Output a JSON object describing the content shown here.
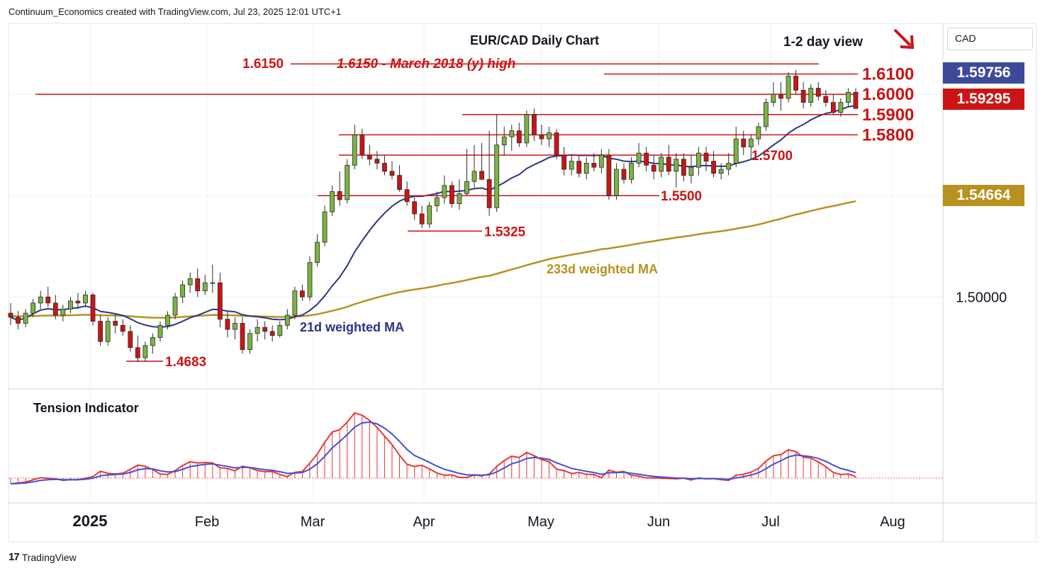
{
  "header": {
    "credit": "Continuum_Economics created with TradingView.com, Jul 23, 2025 12:01 UTC+1"
  },
  "footer": {
    "brand": "TradingView",
    "logo_text": "17"
  },
  "axis": {
    "currency": "CAD",
    "price_tags": [
      {
        "value": "1.59756",
        "color": "#3c4a9a"
      },
      {
        "value": "1.59295",
        "color": "#cc1414"
      },
      {
        "value": "1.54664",
        "color": "#b8911e"
      }
    ],
    "ticks": [
      "1.50000"
    ],
    "time_ticks": [
      "2025",
      "Feb",
      "Mar",
      "Apr",
      "May",
      "Jun",
      "Jul",
      "Aug"
    ]
  },
  "chart_data": {
    "type": "candlestick",
    "title": "EUR/CAD Daily Chart",
    "view_label": "1-2 day view",
    "view_arrow": "down-right-arrow",
    "ylim": [
      1.455,
      1.635
    ],
    "levels": [
      {
        "value": 1.615,
        "label": "1.6150",
        "color": "#cc1414"
      },
      {
        "value": 1.61,
        "label": "1.6100",
        "color": "#cc1414"
      },
      {
        "value": 1.6,
        "label": "1.6000",
        "color": "#cc1414"
      },
      {
        "value": 1.59,
        "label": "1.5900",
        "color": "#cc1414"
      },
      {
        "value": 1.58,
        "label": "1.5800",
        "color": "#cc1414"
      },
      {
        "value": 1.57,
        "label": "1.5700",
        "color": "#cc1414"
      },
      {
        "value": 1.55,
        "label": "1.5500",
        "color": "#cc1414"
      },
      {
        "value": 1.5325,
        "label": "1.5325",
        "color": "#cc1414"
      },
      {
        "value": 1.4683,
        "label": "1.4683",
        "color": "#cc1414"
      }
    ],
    "annotation": "1.6150 - March 2018 (y) high",
    "series": [
      {
        "name": "21d weighted MA",
        "color": "#2a3580"
      },
      {
        "name": "233d weighted MA",
        "color": "#b8911e"
      }
    ],
    "candle_colors": {
      "up": "#7cb342",
      "down": "#cc1414"
    },
    "candles": [
      [
        1.492,
        1.497,
        1.486,
        1.49
      ],
      [
        1.49,
        1.493,
        1.484,
        1.487
      ],
      [
        1.487,
        1.494,
        1.485,
        1.492
      ],
      [
        1.492,
        1.499,
        1.49,
        1.497
      ],
      [
        1.497,
        1.503,
        1.494,
        1.5
      ],
      [
        1.5,
        1.505,
        1.495,
        1.497
      ],
      [
        1.497,
        1.501,
        1.489,
        1.491
      ],
      [
        1.491,
        1.496,
        1.488,
        1.494
      ],
      [
        1.494,
        1.5,
        1.492,
        1.498
      ],
      [
        1.498,
        1.502,
        1.494,
        1.497
      ],
      [
        1.497,
        1.503,
        1.495,
        1.501
      ],
      [
        1.501,
        1.502,
        1.486,
        1.488
      ],
      [
        1.488,
        1.491,
        1.476,
        1.478
      ],
      [
        1.478,
        1.49,
        1.476,
        1.488
      ],
      [
        1.488,
        1.491,
        1.482,
        1.486
      ],
      [
        1.486,
        1.489,
        1.481,
        1.483
      ],
      [
        1.483,
        1.486,
        1.473,
        1.475
      ],
      [
        1.475,
        1.481,
        1.468,
        1.47
      ],
      [
        1.47,
        1.478,
        1.468,
        1.476
      ],
      [
        1.476,
        1.482,
        1.472,
        1.48
      ],
      [
        1.48,
        1.488,
        1.478,
        1.486
      ],
      [
        1.486,
        1.493,
        1.484,
        1.491
      ],
      [
        1.491,
        1.502,
        1.489,
        1.5
      ],
      [
        1.5,
        1.508,
        1.497,
        1.506
      ],
      [
        1.506,
        1.512,
        1.502,
        1.509
      ],
      [
        1.509,
        1.514,
        1.5,
        1.503
      ],
      [
        1.503,
        1.511,
        1.501,
        1.507
      ],
      [
        1.507,
        1.516,
        1.502,
        1.507
      ],
      [
        1.507,
        1.512,
        1.485,
        1.489
      ],
      [
        1.489,
        1.493,
        1.48,
        1.484
      ],
      [
        1.484,
        1.49,
        1.479,
        1.487
      ],
      [
        1.487,
        1.49,
        1.472,
        1.474
      ],
      [
        1.474,
        1.484,
        1.472,
        1.482
      ],
      [
        1.482,
        1.489,
        1.478,
        1.485
      ],
      [
        1.485,
        1.488,
        1.479,
        1.483
      ],
      [
        1.483,
        1.486,
        1.478,
        1.481
      ],
      [
        1.481,
        1.488,
        1.48,
        1.486
      ],
      [
        1.486,
        1.494,
        1.484,
        1.491
      ],
      [
        1.491,
        1.505,
        1.489,
        1.503
      ],
      [
        1.503,
        1.506,
        1.498,
        1.5
      ],
      [
        1.5,
        1.52,
        1.498,
        1.517
      ],
      [
        1.517,
        1.531,
        1.515,
        1.527
      ],
      [
        1.527,
        1.545,
        1.525,
        1.542
      ],
      [
        1.542,
        1.555,
        1.54,
        1.552
      ],
      [
        1.552,
        1.562,
        1.545,
        1.548
      ],
      [
        1.548,
        1.568,
        1.546,
        1.565
      ],
      [
        1.565,
        1.585,
        1.563,
        1.58
      ],
      [
        1.58,
        1.583,
        1.568,
        1.57
      ],
      [
        1.57,
        1.575,
        1.565,
        1.568
      ],
      [
        1.568,
        1.572,
        1.563,
        1.566
      ],
      [
        1.566,
        1.57,
        1.56,
        1.562
      ],
      [
        1.562,
        1.567,
        1.558,
        1.56
      ],
      [
        1.56,
        1.565,
        1.552,
        1.553
      ],
      [
        1.553,
        1.557,
        1.545,
        1.547
      ],
      [
        1.547,
        1.549,
        1.538,
        1.541
      ],
      [
        1.541,
        1.545,
        1.534,
        1.536
      ],
      [
        1.536,
        1.547,
        1.534,
        1.545
      ],
      [
        1.545,
        1.552,
        1.542,
        1.549
      ],
      [
        1.549,
        1.56,
        1.546,
        1.555
      ],
      [
        1.555,
        1.557,
        1.544,
        1.546
      ],
      [
        1.546,
        1.558,
        1.543,
        1.551
      ],
      [
        1.551,
        1.573,
        1.55,
        1.557
      ],
      [
        1.557,
        1.575,
        1.554,
        1.562
      ],
      [
        1.562,
        1.576,
        1.558,
        1.558
      ],
      [
        1.558,
        1.582,
        1.54,
        1.544
      ],
      [
        1.544,
        1.59,
        1.542,
        1.575
      ],
      [
        1.575,
        1.584,
        1.57,
        1.579
      ],
      [
        1.579,
        1.585,
        1.572,
        1.582
      ],
      [
        1.582,
        1.586,
        1.574,
        1.576
      ],
      [
        1.576,
        1.592,
        1.574,
        1.59
      ],
      [
        1.59,
        1.593,
        1.577,
        1.58
      ],
      [
        1.58,
        1.585,
        1.575,
        1.578
      ],
      [
        1.578,
        1.584,
        1.574,
        1.581
      ],
      [
        1.581,
        1.583,
        1.568,
        1.57
      ],
      [
        1.57,
        1.574,
        1.56,
        1.563
      ],
      [
        1.563,
        1.57,
        1.56,
        1.567
      ],
      [
        1.567,
        1.57,
        1.559,
        1.561
      ],
      [
        1.561,
        1.569,
        1.558,
        1.566
      ],
      [
        1.566,
        1.571,
        1.562,
        1.564
      ],
      [
        1.564,
        1.573,
        1.561,
        1.57
      ],
      [
        1.57,
        1.573,
        1.548,
        1.55
      ],
      [
        1.55,
        1.566,
        1.548,
        1.563
      ],
      [
        1.563,
        1.566,
        1.556,
        1.558
      ],
      [
        1.558,
        1.569,
        1.556,
        1.566
      ],
      [
        1.566,
        1.576,
        1.564,
        1.571
      ],
      [
        1.571,
        1.574,
        1.562,
        1.565
      ],
      [
        1.565,
        1.57,
        1.558,
        1.562
      ],
      [
        1.562,
        1.571,
        1.559,
        1.569
      ],
      [
        1.569,
        1.575,
        1.56,
        1.562
      ],
      [
        1.562,
        1.571,
        1.554,
        1.568
      ],
      [
        1.568,
        1.571,
        1.557,
        1.56
      ],
      [
        1.56,
        1.57,
        1.556,
        1.564
      ],
      [
        1.564,
        1.574,
        1.56,
        1.571
      ],
      [
        1.571,
        1.574,
        1.562,
        1.567
      ],
      [
        1.567,
        1.572,
        1.559,
        1.561
      ],
      [
        1.561,
        1.566,
        1.558,
        1.563
      ],
      [
        1.563,
        1.571,
        1.56,
        1.566
      ],
      [
        1.566,
        1.584,
        1.564,
        1.578
      ],
      [
        1.578,
        1.582,
        1.57,
        1.574
      ],
      [
        1.574,
        1.58,
        1.568,
        1.578
      ],
      [
        1.578,
        1.586,
        1.575,
        1.584
      ],
      [
        1.584,
        1.598,
        1.582,
        1.596
      ],
      [
        1.596,
        1.606,
        1.594,
        1.6
      ],
      [
        1.6,
        1.606,
        1.592,
        1.598
      ],
      [
        1.598,
        1.611,
        1.596,
        1.609
      ],
      [
        1.609,
        1.612,
        1.6,
        1.602
      ],
      [
        1.602,
        1.606,
        1.593,
        1.596
      ],
      [
        1.596,
        1.605,
        1.594,
        1.603
      ],
      [
        1.603,
        1.606,
        1.597,
        1.599
      ],
      [
        1.599,
        1.602,
        1.594,
        1.596
      ],
      [
        1.596,
        1.6,
        1.59,
        1.591
      ],
      [
        1.591,
        1.598,
        1.589,
        1.596
      ],
      [
        1.596,
        1.603,
        1.594,
        1.601
      ],
      [
        1.601,
        1.603,
        1.593,
        1.593
      ]
    ]
  },
  "tension_indicator": {
    "title": "Tension Indicator",
    "colors": {
      "fast": "#e53935",
      "slow": "#3f51d8",
      "hist": "#e53935"
    }
  }
}
